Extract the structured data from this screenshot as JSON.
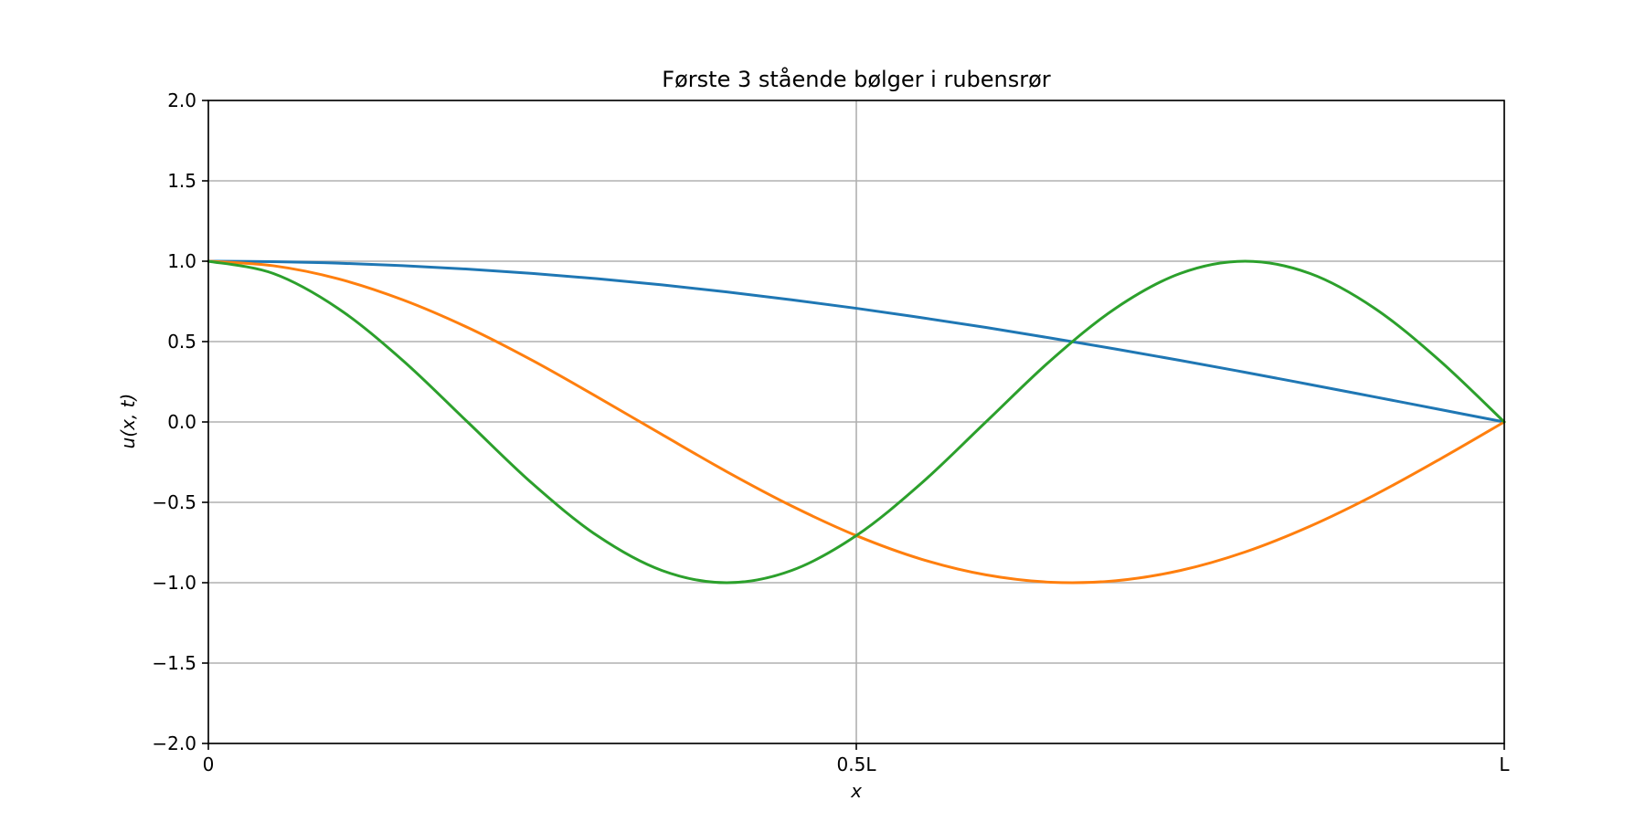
{
  "chart_data": {
    "type": "line",
    "title": "Første 3 stående bølger i rubensrør",
    "xlabel": "x",
    "ylabel": "u(x, t)",
    "xlim": [
      0,
      1
    ],
    "ylim": [
      -2.0,
      2.0
    ],
    "grid": true,
    "x_ticks": [
      {
        "value": 0,
        "label": "0"
      },
      {
        "value": 0.5,
        "label": "0.5L"
      },
      {
        "value": 1,
        "label": "L"
      }
    ],
    "y_ticks": [
      {
        "value": 2.0,
        "label": "2.0"
      },
      {
        "value": 1.5,
        "label": "1.5"
      },
      {
        "value": 1.0,
        "label": "1.0"
      },
      {
        "value": 0.5,
        "label": "0.5"
      },
      {
        "value": 0.0,
        "label": "0.0"
      },
      {
        "value": -0.5,
        "label": "−0.5"
      },
      {
        "value": -1.0,
        "label": "−1.0"
      },
      {
        "value": -1.5,
        "label": "−1.5"
      },
      {
        "value": -2.0,
        "label": "−2.0"
      }
    ],
    "x": [
      0,
      0.05,
      0.1,
      0.15,
      0.2,
      0.25,
      0.3,
      0.35,
      0.4,
      0.45,
      0.5,
      0.55,
      0.6,
      0.65,
      0.7,
      0.75,
      0.8,
      0.85,
      0.9,
      0.95,
      1.0
    ],
    "series": [
      {
        "color": "#1f77b4",
        "values": [
          1.0,
          0.997,
          0.988,
          0.972,
          0.951,
          0.924,
          0.891,
          0.853,
          0.809,
          0.76,
          0.707,
          0.649,
          0.588,
          0.522,
          0.454,
          0.383,
          0.309,
          0.233,
          0.156,
          0.078,
          0.0
        ]
      },
      {
        "color": "#ff7f0e",
        "values": [
          1.0,
          0.972,
          0.891,
          0.76,
          0.588,
          0.383,
          0.156,
          -0.078,
          -0.309,
          -0.522,
          -0.707,
          -0.853,
          -0.951,
          -0.997,
          -0.988,
          -0.924,
          -0.809,
          -0.649,
          -0.454,
          -0.233,
          0.0
        ]
      },
      {
        "color": "#2ca02c",
        "values": [
          1.0,
          0.924,
          0.707,
          0.383,
          0.0,
          -0.383,
          -0.707,
          -0.924,
          -1.0,
          -0.924,
          -0.707,
          -0.383,
          0.0,
          0.383,
          0.707,
          0.924,
          1.0,
          0.924,
          0.707,
          0.383,
          0.0
        ]
      }
    ]
  }
}
